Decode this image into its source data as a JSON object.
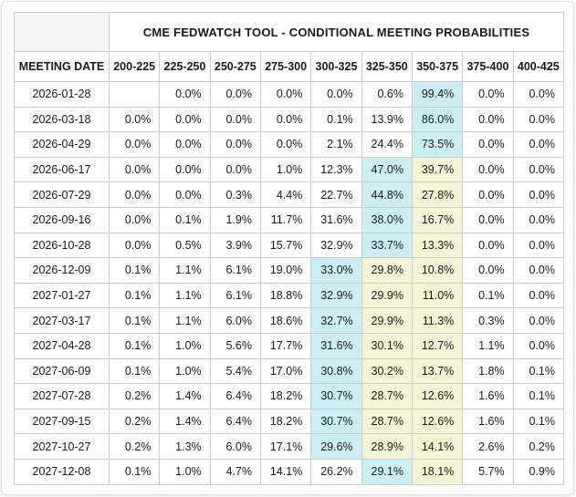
{
  "chart_data": {
    "type": "table",
    "title": "CME FEDWATCH TOOL - CONDITIONAL MEETING PROBABILITIES",
    "corner_label": "",
    "columns": [
      "MEETING DATE",
      "200-225",
      "225-250",
      "250-275",
      "275-300",
      "300-325",
      "325-350",
      "350-375",
      "375-400",
      "400-425"
    ],
    "rows": [
      {
        "date": "2026-01-28",
        "values": [
          "",
          "0.0%",
          "0.0%",
          "0.0%",
          "0.0%",
          "0.6%",
          "99.4%",
          "0.0%",
          "0.0%"
        ],
        "bg": [
          "",
          "",
          "",
          "",
          "",
          "",
          "blue",
          "",
          ""
        ]
      },
      {
        "date": "2026-03-18",
        "values": [
          "0.0%",
          "0.0%",
          "0.0%",
          "0.0%",
          "0.1%",
          "13.9%",
          "86.0%",
          "0.0%",
          "0.0%"
        ],
        "bg": [
          "",
          "",
          "",
          "",
          "",
          "",
          "blue",
          "",
          ""
        ]
      },
      {
        "date": "2026-04-29",
        "values": [
          "0.0%",
          "0.0%",
          "0.0%",
          "0.0%",
          "2.1%",
          "24.4%",
          "73.5%",
          "0.0%",
          "0.0%"
        ],
        "bg": [
          "",
          "",
          "",
          "",
          "",
          "",
          "blue",
          "",
          ""
        ]
      },
      {
        "date": "2026-06-17",
        "values": [
          "0.0%",
          "0.0%",
          "0.0%",
          "1.0%",
          "12.3%",
          "47.0%",
          "39.7%",
          "0.0%",
          "0.0%"
        ],
        "bg": [
          "",
          "",
          "",
          "",
          "",
          "blue",
          "yellow",
          "",
          ""
        ]
      },
      {
        "date": "2026-07-29",
        "values": [
          "0.0%",
          "0.0%",
          "0.3%",
          "4.4%",
          "22.7%",
          "44.8%",
          "27.8%",
          "0.0%",
          "0.0%"
        ],
        "bg": [
          "",
          "",
          "",
          "",
          "",
          "blue",
          "yellow",
          "",
          ""
        ]
      },
      {
        "date": "2026-09-16",
        "values": [
          "0.0%",
          "0.1%",
          "1.9%",
          "11.7%",
          "31.6%",
          "38.0%",
          "16.7%",
          "0.0%",
          "0.0%"
        ],
        "bg": [
          "",
          "",
          "",
          "",
          "",
          "blue",
          "yellow",
          "",
          ""
        ]
      },
      {
        "date": "2026-10-28",
        "values": [
          "0.0%",
          "0.5%",
          "3.9%",
          "15.7%",
          "32.9%",
          "33.7%",
          "13.3%",
          "0.0%",
          "0.0%"
        ],
        "bg": [
          "",
          "",
          "",
          "",
          "",
          "blue",
          "yellow",
          "",
          ""
        ]
      },
      {
        "date": "2026-12-09",
        "values": [
          "0.1%",
          "1.1%",
          "6.1%",
          "19.0%",
          "33.0%",
          "29.8%",
          "10.8%",
          "0.0%",
          "0.0%"
        ],
        "bg": [
          "",
          "",
          "",
          "",
          "blue",
          "yellow",
          "yellow",
          "",
          ""
        ]
      },
      {
        "date": "2027-01-27",
        "values": [
          "0.1%",
          "1.1%",
          "6.1%",
          "18.8%",
          "32.9%",
          "29.9%",
          "11.0%",
          "0.1%",
          "0.0%"
        ],
        "bg": [
          "",
          "",
          "",
          "",
          "blue",
          "yellow",
          "yellow",
          "",
          ""
        ]
      },
      {
        "date": "2027-03-17",
        "values": [
          "0.1%",
          "1.1%",
          "6.0%",
          "18.6%",
          "32.7%",
          "29.9%",
          "11.3%",
          "0.3%",
          "0.0%"
        ],
        "bg": [
          "",
          "",
          "",
          "",
          "blue",
          "yellow",
          "yellow",
          "",
          ""
        ]
      },
      {
        "date": "2027-04-28",
        "values": [
          "0.1%",
          "1.0%",
          "5.6%",
          "17.7%",
          "31.6%",
          "30.1%",
          "12.7%",
          "1.1%",
          "0.0%"
        ],
        "bg": [
          "",
          "",
          "",
          "",
          "blue",
          "yellow",
          "yellow",
          "",
          ""
        ]
      },
      {
        "date": "2027-06-09",
        "values": [
          "0.1%",
          "1.0%",
          "5.4%",
          "17.0%",
          "30.8%",
          "30.2%",
          "13.7%",
          "1.8%",
          "0.1%"
        ],
        "bg": [
          "",
          "",
          "",
          "",
          "blue",
          "yellow",
          "yellow",
          "",
          ""
        ]
      },
      {
        "date": "2027-07-28",
        "values": [
          "0.2%",
          "1.4%",
          "6.4%",
          "18.2%",
          "30.7%",
          "28.7%",
          "12.6%",
          "1.6%",
          "0.1%"
        ],
        "bg": [
          "",
          "",
          "",
          "",
          "blue",
          "yellow",
          "yellow",
          "",
          ""
        ]
      },
      {
        "date": "2027-09-15",
        "values": [
          "0.2%",
          "1.4%",
          "6.4%",
          "18.2%",
          "30.7%",
          "28.7%",
          "12.6%",
          "1.6%",
          "0.1%"
        ],
        "bg": [
          "",
          "",
          "",
          "",
          "blue",
          "yellow",
          "yellow",
          "",
          ""
        ]
      },
      {
        "date": "2027-10-27",
        "values": [
          "0.2%",
          "1.3%",
          "6.0%",
          "17.1%",
          "29.6%",
          "28.9%",
          "14.1%",
          "2.6%",
          "0.2%"
        ],
        "bg": [
          "",
          "",
          "",
          "",
          "blue",
          "yellow",
          "yellow",
          "",
          ""
        ]
      },
      {
        "date": "2027-12-08",
        "values": [
          "0.1%",
          "1.0%",
          "4.7%",
          "14.1%",
          "26.2%",
          "29.1%",
          "18.1%",
          "5.7%",
          "0.9%"
        ],
        "bg": [
          "",
          "",
          "",
          "",
          "",
          "blue",
          "yellow",
          "",
          ""
        ]
      }
    ],
    "colors": {
      "highlight_blue": "#cbeef5",
      "highlight_yellow": "#f5f3d6",
      "grid": "#cccccc",
      "corner_bg": "#f4f4f4",
      "text": "#1a1a1a"
    },
    "layout": {
      "legend": "off",
      "grid": "on",
      "value_alignment": "right",
      "date_alignment": "center"
    }
  }
}
